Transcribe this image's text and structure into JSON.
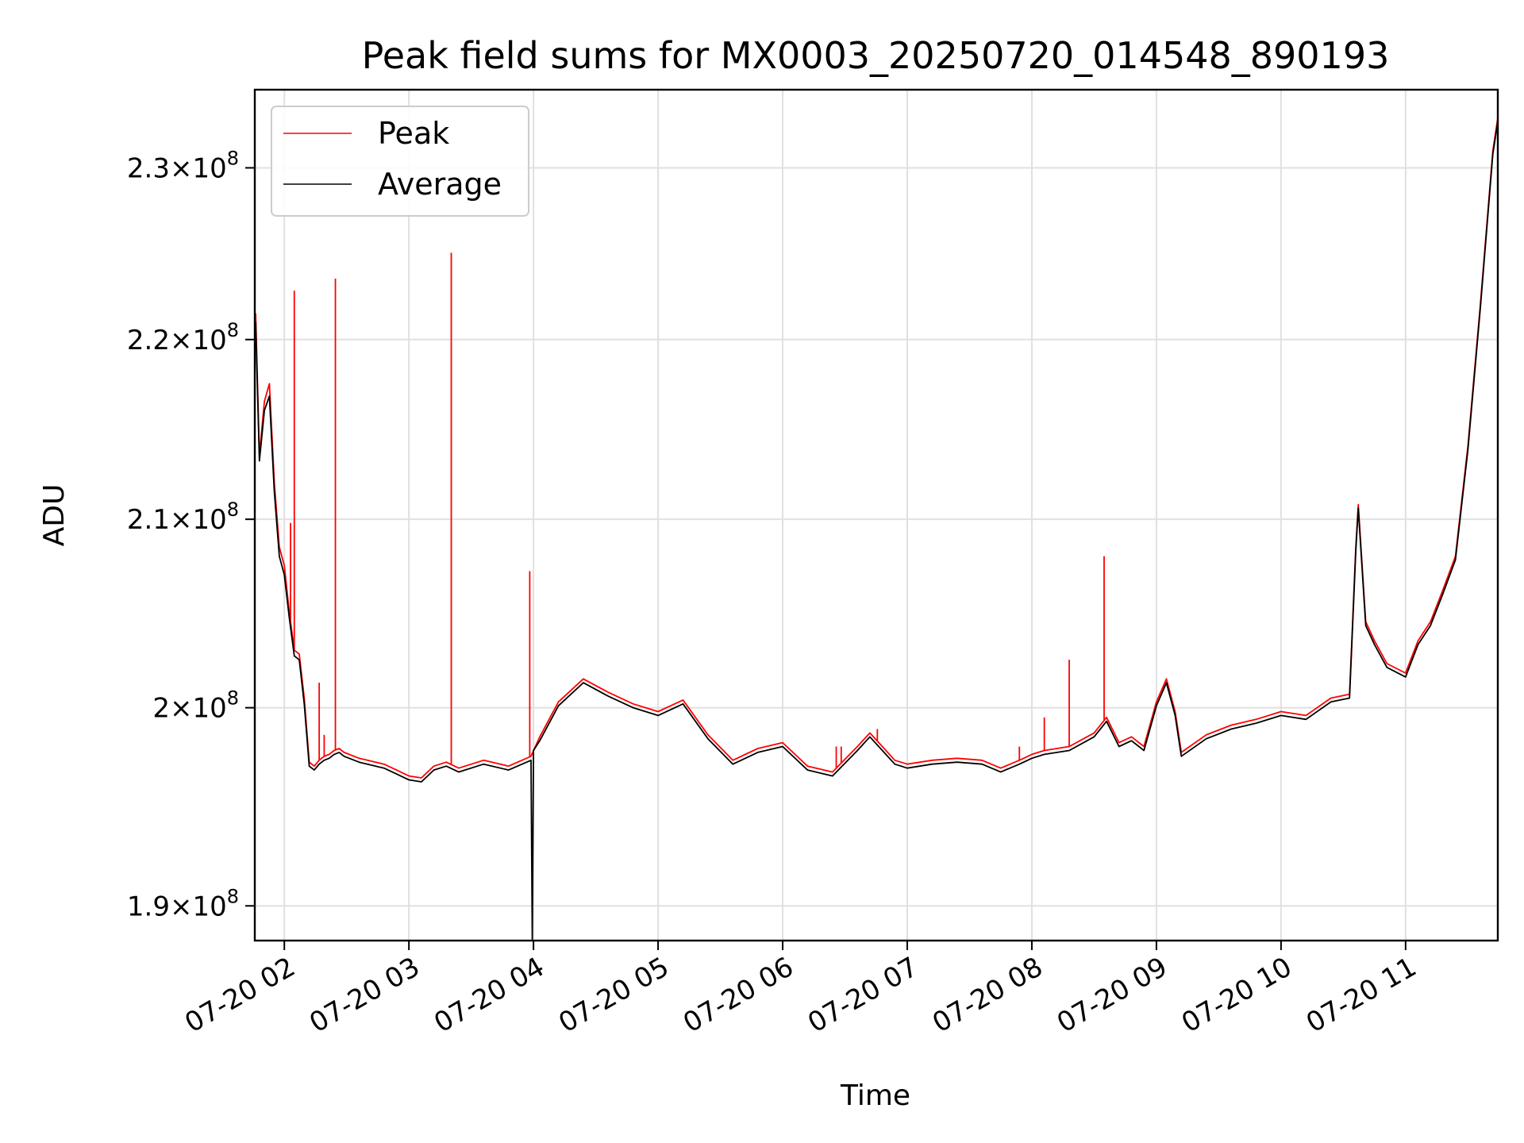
{
  "chart_data": {
    "type": "line",
    "title": "Peak field sums for MX0003_20250720_014548_890193",
    "xlabel": "Time",
    "ylabel": "ADU",
    "x_unit": "hours",
    "xlim": [
      1.763,
      11.74
    ],
    "ylim": [
      188300000,
      234700000
    ],
    "y_scale": "log",
    "grid": true,
    "legend_position": "upper-left",
    "x_ticks": [
      {
        "value": 2,
        "label": "07-20 02"
      },
      {
        "value": 3,
        "label": "07-20 03"
      },
      {
        "value": 4,
        "label": "07-20 04"
      },
      {
        "value": 5,
        "label": "07-20 05"
      },
      {
        "value": 6,
        "label": "07-20 06"
      },
      {
        "value": 7,
        "label": "07-20 07"
      },
      {
        "value": 8,
        "label": "07-20 08"
      },
      {
        "value": 9,
        "label": "07-20 09"
      },
      {
        "value": 10,
        "label": "07-20 10"
      },
      {
        "value": 11,
        "label": "07-20 11"
      }
    ],
    "y_ticks": [
      {
        "value": 190000000,
        "mantissa": "1.9",
        "exp": "8"
      },
      {
        "value": 200000000,
        "mantissa": "2",
        "exp": "8"
      },
      {
        "value": 210000000,
        "mantissa": "2.1",
        "exp": "8"
      },
      {
        "value": 220000000,
        "mantissa": "2.2",
        "exp": "8"
      },
      {
        "value": 230000000,
        "mantissa": "2.3",
        "exp": "8"
      }
    ],
    "series": [
      {
        "name": "Peak",
        "color": "#ff0000",
        "x": [
          1.77,
          1.8,
          1.84,
          1.88,
          1.92,
          1.96,
          2.0,
          2.04,
          2.08,
          2.12,
          2.16,
          2.2,
          2.24,
          2.28,
          2.32,
          2.36,
          2.4,
          2.44,
          2.48,
          2.6,
          2.8,
          2.9,
          3.0,
          3.1,
          3.2,
          3.3,
          3.4,
          3.6,
          3.8,
          3.98,
          4.05,
          4.2,
          4.4,
          4.6,
          4.8,
          5.0,
          5.2,
          5.4,
          5.6,
          5.8,
          6.0,
          6.2,
          6.4,
          6.6,
          6.7,
          6.8,
          6.9,
          7.0,
          7.2,
          7.4,
          7.6,
          7.75,
          7.9,
          8.0,
          8.1,
          8.3,
          8.5,
          8.6,
          8.7,
          8.8,
          8.9,
          9.0,
          9.08,
          9.15,
          9.2,
          9.4,
          9.6,
          9.8,
          10.0,
          10.2,
          10.4,
          10.55,
          10.6,
          10.62,
          10.68,
          10.75,
          10.85,
          11.0,
          11.1,
          11.2,
          11.3,
          11.4,
          11.5,
          11.6,
          11.7,
          11.74
        ],
        "y": [
          221500000,
          213500000,
          216500000,
          217500000,
          212000000,
          208500000,
          207500000,
          205000000,
          203000000,
          202800000,
          200500000,
          197200000,
          197000000,
          197300000,
          197500000,
          197600000,
          197800000,
          197900000,
          197700000,
          197400000,
          197100000,
          196800000,
          196500000,
          196400000,
          197000000,
          197200000,
          196900000,
          197300000,
          197000000,
          197500000,
          198500000,
          200300000,
          201500000,
          200800000,
          200200000,
          199800000,
          200400000,
          198600000,
          197300000,
          197900000,
          198200000,
          197000000,
          196700000,
          198000000,
          198700000,
          198000000,
          197300000,
          197100000,
          197300000,
          197400000,
          197300000,
          196900000,
          197300000,
          197600000,
          197800000,
          198000000,
          198700000,
          199500000,
          198200000,
          198500000,
          198000000,
          200300000,
          201500000,
          199800000,
          197700000,
          198600000,
          199100000,
          199400000,
          199800000,
          199600000,
          200500000,
          200700000,
          208500000,
          210800000,
          204500000,
          203500000,
          202300000,
          201800000,
          203500000,
          204500000,
          206200000,
          208000000,
          214000000,
          222000000,
          231000000,
          233000000
        ]
      },
      {
        "name": "Average",
        "color": "#000000",
        "x": [
          1.77,
          1.8,
          1.84,
          1.88,
          1.92,
          1.96,
          2.0,
          2.04,
          2.08,
          2.12,
          2.16,
          2.2,
          2.24,
          2.28,
          2.32,
          2.36,
          2.4,
          2.44,
          2.48,
          2.6,
          2.8,
          2.9,
          3.0,
          3.1,
          3.2,
          3.3,
          3.4,
          3.6,
          3.8,
          3.98,
          3.99,
          4.0,
          4.05,
          4.2,
          4.4,
          4.6,
          4.8,
          5.0,
          5.2,
          5.4,
          5.6,
          5.8,
          6.0,
          6.2,
          6.4,
          6.6,
          6.7,
          6.8,
          6.9,
          7.0,
          7.2,
          7.4,
          7.6,
          7.75,
          7.9,
          8.0,
          8.1,
          8.3,
          8.5,
          8.6,
          8.7,
          8.8,
          8.9,
          9.0,
          9.08,
          9.15,
          9.2,
          9.4,
          9.6,
          9.8,
          10.0,
          10.2,
          10.4,
          10.55,
          10.6,
          10.62,
          10.68,
          10.75,
          10.85,
          11.0,
          11.1,
          11.2,
          11.3,
          11.4,
          11.5,
          11.6,
          11.7,
          11.74
        ],
        "y": [
          221000000,
          213200000,
          216000000,
          216800000,
          211500000,
          208000000,
          207000000,
          204700000,
          202700000,
          202500000,
          200200000,
          197000000,
          196800000,
          197100000,
          197300000,
          197400000,
          197600000,
          197700000,
          197500000,
          197200000,
          196900000,
          196600000,
          196300000,
          196200000,
          196800000,
          197000000,
          196700000,
          197100000,
          196800000,
          197300000,
          188300000,
          197800000,
          198300000,
          200100000,
          201300000,
          200600000,
          200000000,
          199600000,
          200200000,
          198400000,
          197100000,
          197700000,
          198000000,
          196800000,
          196500000,
          197800000,
          198500000,
          197800000,
          197100000,
          196900000,
          197100000,
          197200000,
          197100000,
          196700000,
          197100000,
          197400000,
          197600000,
          197800000,
          198500000,
          199300000,
          198000000,
          198300000,
          197800000,
          200100000,
          201300000,
          199600000,
          197500000,
          198400000,
          198900000,
          199200000,
          199600000,
          199400000,
          200300000,
          200500000,
          208300000,
          210600000,
          204300000,
          203300000,
          202100000,
          201600000,
          203300000,
          204300000,
          206000000,
          207800000,
          213800000,
          221800000,
          230800000,
          232800000
        ]
      }
    ],
    "spikes": {
      "description": "Isolated single-sample peaks visible in the Peak series",
      "x": [
        2.05,
        2.08,
        2.28,
        2.32,
        2.41,
        3.34,
        3.97,
        6.43,
        6.47,
        6.76,
        7.9,
        8.1,
        8.3,
        8.58
      ],
      "y": [
        209800000,
        222800000,
        201300000,
        198600000,
        223500000,
        225000000,
        207200000,
        198000000,
        198000000,
        198900000,
        198000000,
        199500000,
        202500000,
        208000000
      ]
    }
  }
}
